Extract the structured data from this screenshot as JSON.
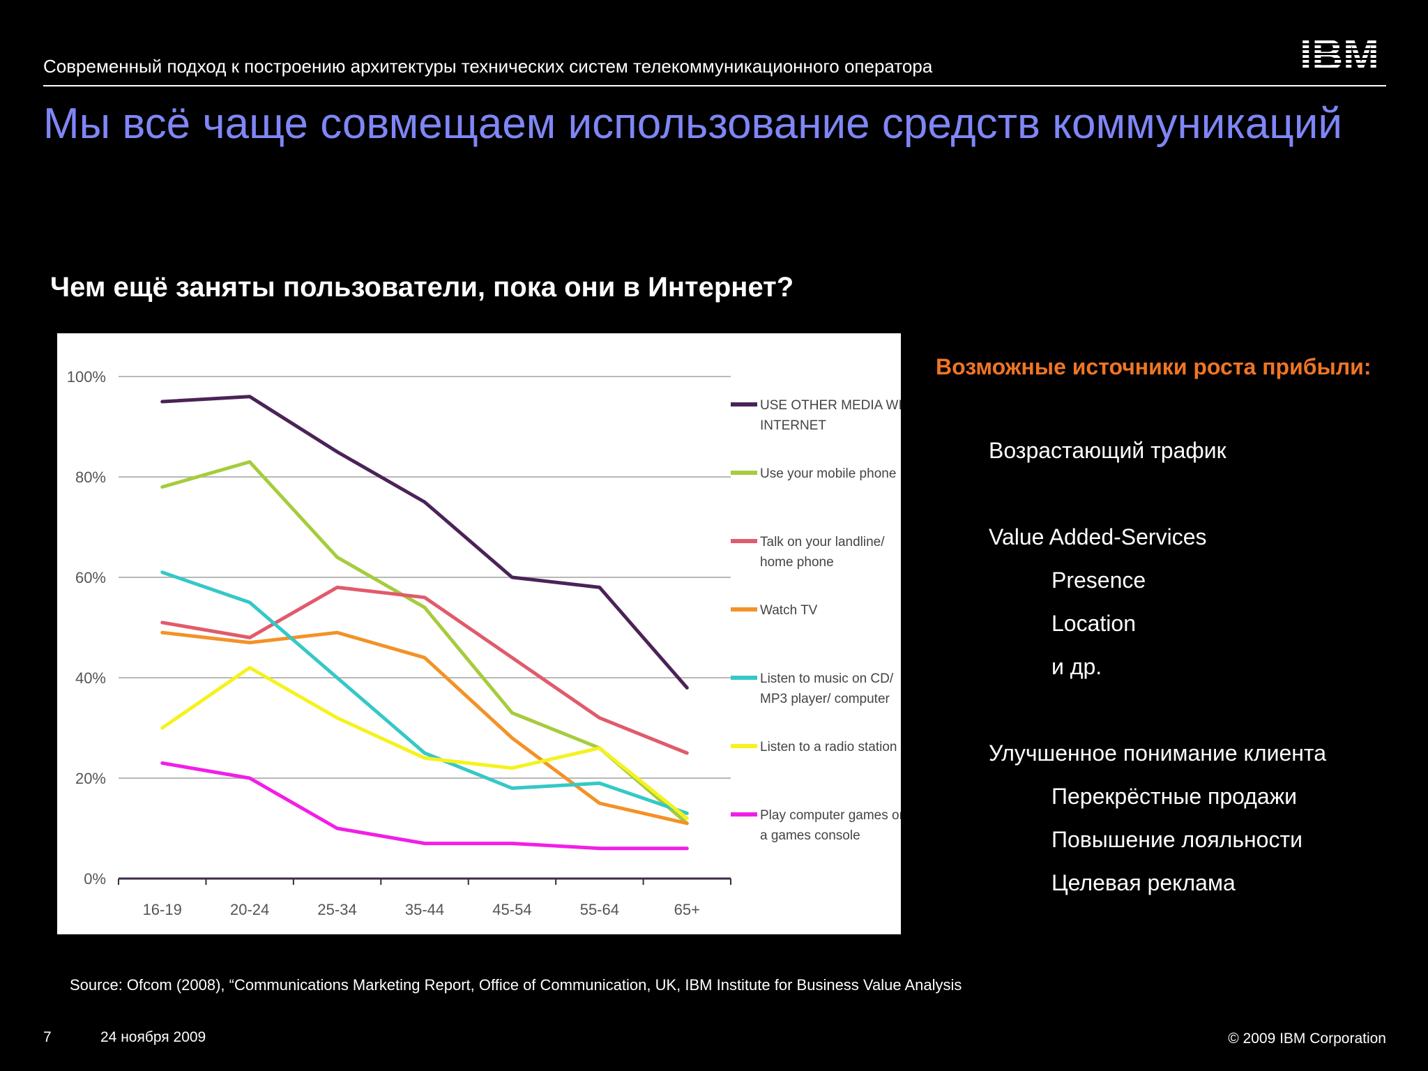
{
  "header": {
    "breadcrumb": "Современный подход к построению архитектуры технических систем телекоммуникационного оператора",
    "logo_text": "IBM"
  },
  "title": "Мы всё чаще совмещаем использование средств коммуникаций",
  "subtitle": "Чем ещё заняты пользователи, пока они в Интернет?",
  "chart_data": {
    "type": "line",
    "categories": [
      "16-19",
      "20-24",
      "25-34",
      "35-44",
      "45-54",
      "55-64",
      "65+"
    ],
    "y_tick_labels": [
      "0%",
      "20%",
      "40%",
      "60%",
      "80%",
      "100%"
    ],
    "ylim": [
      0,
      100
    ],
    "grid": true,
    "legend_position": "right",
    "series": [
      {
        "name": [
          "USE OTHER MEDIA WITH",
          "INTERNET"
        ],
        "color": "#4b2357",
        "values": [
          95,
          96,
          85,
          75,
          60,
          58,
          38
        ]
      },
      {
        "name": [
          "Use your mobile phone"
        ],
        "color": "#a6cc3c",
        "values": [
          78,
          83,
          64,
          54,
          33,
          26,
          11
        ]
      },
      {
        "name": [
          "Talk on your landline/",
          "home phone"
        ],
        "color": "#e05b6b",
        "values": [
          51,
          48,
          58,
          56,
          44,
          32,
          25
        ]
      },
      {
        "name": [
          "Watch TV"
        ],
        "color": "#f39227",
        "values": [
          49,
          47,
          49,
          44,
          28,
          15,
          11
        ]
      },
      {
        "name": [
          "Listen to music on CD/",
          "MP3 player/ computer"
        ],
        "color": "#35c8c8",
        "values": [
          61,
          55,
          40,
          25,
          18,
          19,
          13
        ]
      },
      {
        "name": [
          "Listen to a radio station"
        ],
        "color": "#f5f21e",
        "values": [
          30,
          42,
          32,
          24,
          22,
          26,
          12
        ]
      },
      {
        "name": [
          "Play computer games on",
          "a games console"
        ],
        "color": "#f21ee6",
        "values": [
          23,
          20,
          10,
          7,
          7,
          6,
          6
        ]
      }
    ]
  },
  "panel": {
    "heading": "Возможные источники роста прибыли:",
    "items": [
      "Возрастающий трафик",
      "Value Added-Services",
      "Presence",
      "Location",
      "и др.",
      "Улучшенное понимание клиента",
      "Перекрёстные продажи",
      "Повышение лояльности",
      "Целевая реклама"
    ]
  },
  "source": "Source: Ofcom (2008), “Communications Marketing Report, Office of Communication, UK, IBM Institute for Business Value Analysis",
  "footer": {
    "page_number": "7",
    "date": "24 ноября 2009",
    "copyright": "© 2009 IBM Corporation"
  },
  "colors": {
    "title": "#7f86f5",
    "panel_heading": "#f07524",
    "background": "#000000"
  }
}
